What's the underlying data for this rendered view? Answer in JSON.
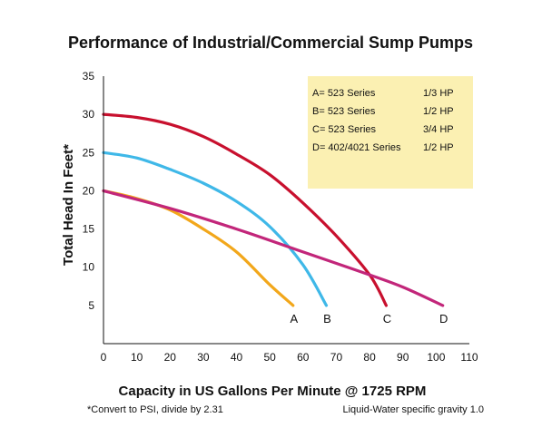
{
  "chart_data": {
    "type": "line",
    "title": "Performance of Industrial/Commercial Sump Pumps",
    "xlabel": "Capacity in US Gallons Per Minute @ 1725 RPM",
    "ylabel": "Total Head In Feet*",
    "xlim": [
      0,
      110
    ],
    "ylim": [
      0,
      35
    ],
    "x_ticks": [
      "0",
      "10",
      "20",
      "30",
      "40",
      "50",
      "60",
      "70",
      "80",
      "90",
      "100",
      "110"
    ],
    "y_ticks": [
      "5",
      "10",
      "15",
      "20",
      "25",
      "30",
      "35"
    ],
    "grid": false,
    "legend_position": "top-right",
    "series": [
      {
        "name": "A",
        "color": "#f2a71b",
        "points": [
          [
            0,
            20
          ],
          [
            10,
            19
          ],
          [
            20,
            17.5
          ],
          [
            30,
            15
          ],
          [
            40,
            12
          ],
          [
            50,
            7.7
          ],
          [
            57,
            5
          ]
        ]
      },
      {
        "name": "B",
        "color": "#3fb8e8",
        "points": [
          [
            0,
            25
          ],
          [
            10,
            24.3
          ],
          [
            20,
            22.8
          ],
          [
            30,
            21
          ],
          [
            40,
            18.6
          ],
          [
            50,
            15.3
          ],
          [
            60,
            10.3
          ],
          [
            67,
            5
          ]
        ]
      },
      {
        "name": "C",
        "color": "#c8102e",
        "points": [
          [
            0,
            30
          ],
          [
            10,
            29.6
          ],
          [
            20,
            28.7
          ],
          [
            30,
            27.1
          ],
          [
            40,
            24.8
          ],
          [
            50,
            22.1
          ],
          [
            60,
            18.4
          ],
          [
            70,
            14.1
          ],
          [
            80,
            9
          ],
          [
            85,
            5
          ]
        ]
      },
      {
        "name": "D",
        "color": "#c2267a",
        "points": [
          [
            0,
            20
          ],
          [
            20,
            17.7
          ],
          [
            40,
            15
          ],
          [
            60,
            12
          ],
          [
            80,
            9
          ],
          [
            90,
            7.4
          ],
          [
            102,
            5
          ]
        ]
      }
    ],
    "legend": [
      {
        "key": "A= 523 Series",
        "hp": "1/3 HP"
      },
      {
        "key": "B= 523 Series",
        "hp": "1/2 HP"
      },
      {
        "key": "C= 523 Series",
        "hp": "3/4 HP"
      },
      {
        "key": "D= 402/4021 Series",
        "hp": "1/2 HP"
      }
    ],
    "legend_bg": "#fbf0b2",
    "notes": {
      "left": "*Convert to PSI, divide by 2.31",
      "right": "Liquid-Water specific gravity 1.0"
    }
  }
}
